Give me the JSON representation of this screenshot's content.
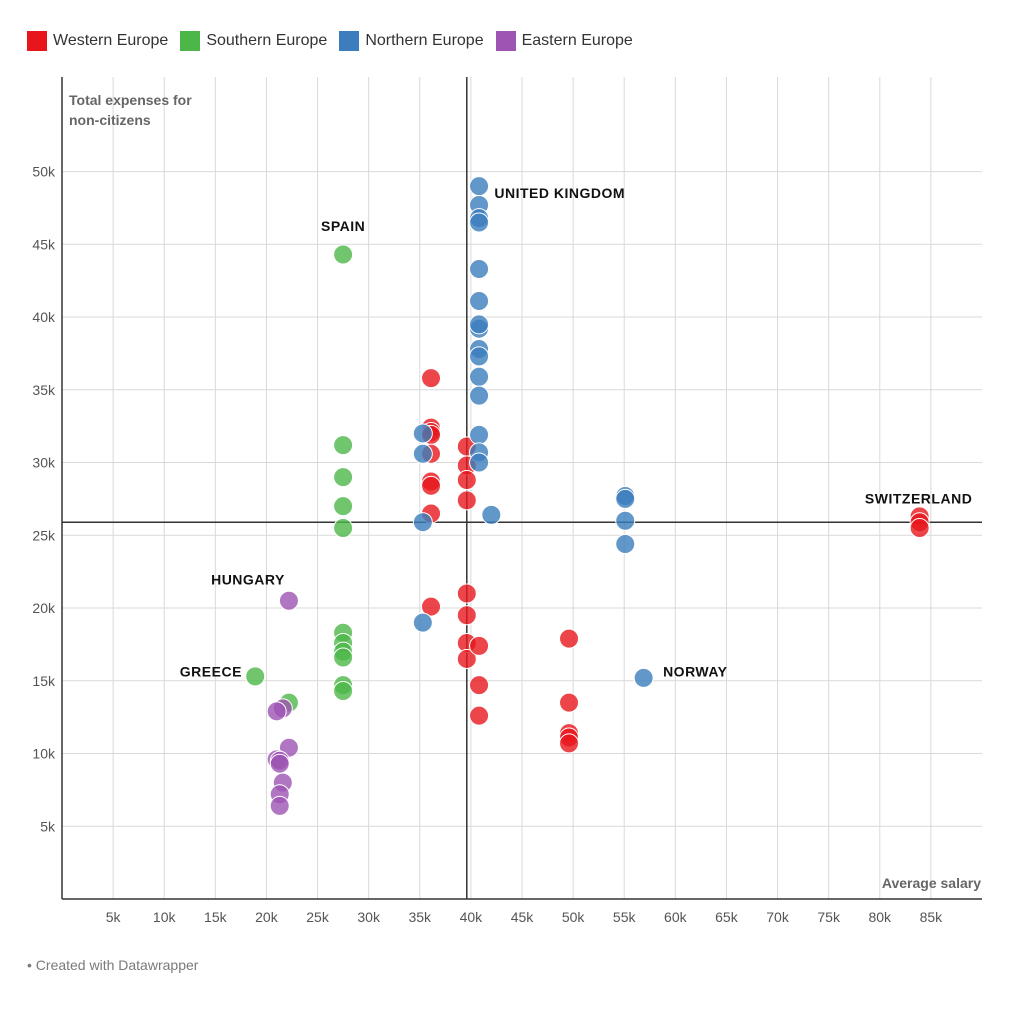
{
  "legend": [
    {
      "label": "Western Europe",
      "color": "#e7161d"
    },
    {
      "label": "Southern Europe",
      "color": "#4cb648"
    },
    {
      "label": "Northern Europe",
      "color": "#3b7dbd"
    },
    {
      "label": "Eastern Europe",
      "color": "#9d54b3"
    }
  ],
  "footer": "• Created with Datawrapper",
  "chart_data": {
    "type": "scatter",
    "ylabel_lines": [
      "Total expenses for",
      "non-citizens"
    ],
    "xlabel": "Average salary",
    "xlim": [
      0,
      90000
    ],
    "ylim": [
      0,
      56500
    ],
    "x_ticks": [
      5000,
      10000,
      15000,
      20000,
      25000,
      30000,
      35000,
      40000,
      45000,
      50000,
      55000,
      60000,
      65000,
      70000,
      75000,
      80000,
      85000
    ],
    "x_tick_labels": [
      "5k",
      "10k",
      "15k",
      "20k",
      "25k",
      "30k",
      "35k",
      "40k",
      "45k",
      "50k",
      "55k",
      "60k",
      "65k",
      "70k",
      "75k",
      "80k",
      "85k"
    ],
    "y_ticks": [
      5000,
      10000,
      15000,
      20000,
      25000,
      30000,
      35000,
      40000,
      45000,
      50000
    ],
    "y_tick_labels": [
      "5k",
      "10k",
      "15k",
      "20k",
      "25k",
      "30k",
      "35k",
      "40k",
      "45k",
      "50k"
    ],
    "grid": true,
    "reference_lines": {
      "x": 39600,
      "y": 25900
    },
    "series": [
      {
        "name": "Western Europe",
        "color": "#e7161d",
        "points": [
          [
            36100,
            35800
          ],
          [
            36100,
            32400
          ],
          [
            36100,
            32100
          ],
          [
            36100,
            31900
          ],
          [
            36100,
            30600
          ],
          [
            36100,
            28700
          ],
          [
            36100,
            28400
          ],
          [
            36100,
            26500
          ],
          [
            36100,
            20100
          ],
          [
            39600,
            31100
          ],
          [
            39600,
            29800
          ],
          [
            39600,
            28800
          ],
          [
            39600,
            27400
          ],
          [
            39600,
            21000
          ],
          [
            39600,
            19500
          ],
          [
            39600,
            17600
          ],
          [
            39600,
            16500
          ],
          [
            40800,
            17400
          ],
          [
            40800,
            14700
          ],
          [
            40800,
            12600
          ],
          [
            49600,
            17900
          ],
          [
            49600,
            13500
          ],
          [
            49600,
            11400
          ],
          [
            49600,
            11100
          ],
          [
            49600,
            10700
          ],
          [
            83900,
            26300
          ],
          [
            83900,
            25900
          ],
          [
            83900,
            25500
          ]
        ]
      },
      {
        "name": "Southern Europe",
        "color": "#4cb648",
        "points": [
          [
            27500,
            44300
          ],
          [
            27500,
            31200
          ],
          [
            27500,
            29000
          ],
          [
            27500,
            27000
          ],
          [
            27500,
            25500
          ],
          [
            27500,
            18300
          ],
          [
            27500,
            17600
          ],
          [
            27500,
            17000
          ],
          [
            27500,
            16600
          ],
          [
            27500,
            14700
          ],
          [
            27500,
            14300
          ],
          [
            22200,
            13500
          ],
          [
            18900,
            15300
          ]
        ]
      },
      {
        "name": "Northern Europe",
        "color": "#3b7dbd",
        "points": [
          [
            40800,
            49000
          ],
          [
            40800,
            47700
          ],
          [
            40800,
            46800
          ],
          [
            40800,
            46500
          ],
          [
            40800,
            43300
          ],
          [
            40800,
            41100
          ],
          [
            40800,
            39200
          ],
          [
            40800,
            39500
          ],
          [
            40800,
            37800
          ],
          [
            40800,
            37300
          ],
          [
            40800,
            35900
          ],
          [
            40800,
            34600
          ],
          [
            40800,
            31900
          ],
          [
            40800,
            30700
          ],
          [
            40800,
            30000
          ],
          [
            35300,
            32000
          ],
          [
            35300,
            30600
          ],
          [
            35300,
            25900
          ],
          [
            35300,
            19000
          ],
          [
            42000,
            26400
          ],
          [
            55100,
            27700
          ],
          [
            55100,
            27500
          ],
          [
            55100,
            26000
          ],
          [
            55100,
            24400
          ],
          [
            56900,
            15200
          ]
        ]
      },
      {
        "name": "Eastern Europe",
        "color": "#9d54b3",
        "points": [
          [
            22200,
            20500
          ],
          [
            22200,
            10400
          ],
          [
            21600,
            13100
          ],
          [
            21000,
            12900
          ],
          [
            21000,
            9600
          ],
          [
            21300,
            9500
          ],
          [
            21300,
            9300
          ],
          [
            21600,
            8000
          ],
          [
            21300,
            7200
          ],
          [
            21300,
            6400
          ]
        ]
      }
    ],
    "annotations": [
      {
        "text": "UNITED KINGDOM",
        "x": 42300,
        "y": 48200,
        "anchor": "start"
      },
      {
        "text": "SPAIN",
        "x": 27500,
        "y": 45900,
        "anchor": "middle"
      },
      {
        "text": "SWITZERLAND",
        "x": 83800,
        "y": 27200,
        "anchor": "middle"
      },
      {
        "text": "HUNGARY",
        "x": 21800,
        "y": 21600,
        "anchor": "end"
      },
      {
        "text": "GREECE",
        "x": 17600,
        "y": 15300,
        "anchor": "end"
      },
      {
        "text": "NORWAY",
        "x": 58800,
        "y": 15300,
        "anchor": "start"
      }
    ]
  }
}
